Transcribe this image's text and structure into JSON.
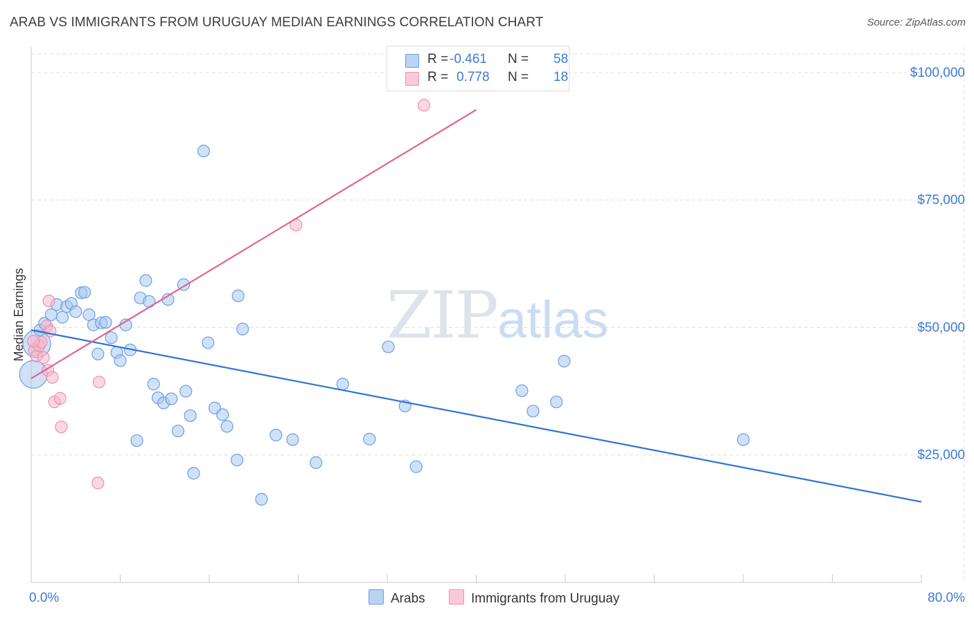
{
  "title": "ARAB VS IMMIGRANTS FROM URUGUAY MEDIAN EARNINGS CORRELATION CHART",
  "source": "Source: ZipAtlas.com",
  "watermark": {
    "zip": "ZIP",
    "atlas": "atlas"
  },
  "legend": {
    "r_label": "R =",
    "n_label": "N =",
    "rows": [
      {
        "r": "-0.461",
        "n": "58"
      },
      {
        "r": "0.778",
        "n": "18"
      }
    ]
  },
  "bottom_legend": {
    "arabs": "Arabs",
    "uruguay": "Immigrants from Uruguay"
  },
  "colors": {
    "arabs_fill": "#a9c8f0",
    "arabs_stroke": "#6a9fe0",
    "arabs_line": "#2f72d4",
    "uruguay_fill": "#f7b7cb",
    "uruguay_stroke": "#ee8fae",
    "uruguay_line": "#e0638f",
    "axis_text": "#3a7bd5",
    "grid": "#dddddd"
  },
  "chart_data": {
    "type": "scatter",
    "title": "ARAB VS IMMIGRANTS FROM URUGUAY MEDIAN EARNINGS CORRELATION CHART",
    "xlabel": "",
    "ylabel": "Median Earnings",
    "xlim": [
      0,
      80
    ],
    "ylim": [
      0,
      105000
    ],
    "x_tick_labels": [
      "0.0%",
      "80.0%"
    ],
    "y_ticks": [
      25000,
      50000,
      75000,
      100000
    ],
    "y_tick_labels": [
      "$25,000",
      "$50,000",
      "$75,000",
      "$100,000"
    ],
    "grid": true,
    "legend_position": "top-center",
    "series": [
      {
        "name": "Arabs",
        "r": -0.461,
        "n": 58,
        "trend": {
          "x": [
            0,
            80
          ],
          "y": [
            49500,
            15800
          ]
        },
        "points": [
          {
            "x": 0.2,
            "y": 40800,
            "big": true
          },
          {
            "x": 0.5,
            "y": 46800,
            "big": true
          },
          {
            "x": 0.8,
            "y": 49500
          },
          {
            "x": 1.2,
            "y": 50800
          },
          {
            "x": 1.8,
            "y": 52500
          },
          {
            "x": 2.3,
            "y": 54500
          },
          {
            "x": 2.8,
            "y": 52000
          },
          {
            "x": 3.2,
            "y": 54100
          },
          {
            "x": 3.6,
            "y": 54700
          },
          {
            "x": 4.0,
            "y": 53100
          },
          {
            "x": 4.5,
            "y": 56800
          },
          {
            "x": 4.8,
            "y": 56900
          },
          {
            "x": 5.2,
            "y": 52500
          },
          {
            "x": 5.6,
            "y": 50500
          },
          {
            "x": 6.0,
            "y": 44800
          },
          {
            "x": 6.3,
            "y": 50900
          },
          {
            "x": 6.7,
            "y": 51000
          },
          {
            "x": 7.2,
            "y": 48000
          },
          {
            "x": 7.7,
            "y": 45100
          },
          {
            "x": 8.0,
            "y": 43500
          },
          {
            "x": 8.5,
            "y": 50500
          },
          {
            "x": 8.9,
            "y": 45600
          },
          {
            "x": 9.5,
            "y": 27800
          },
          {
            "x": 9.8,
            "y": 55800
          },
          {
            "x": 10.3,
            "y": 59200
          },
          {
            "x": 10.6,
            "y": 55100
          },
          {
            "x": 11.0,
            "y": 38900
          },
          {
            "x": 11.4,
            "y": 36200
          },
          {
            "x": 11.9,
            "y": 35200
          },
          {
            "x": 12.3,
            "y": 55500
          },
          {
            "x": 12.6,
            "y": 36000
          },
          {
            "x": 13.2,
            "y": 29700
          },
          {
            "x": 13.7,
            "y": 58400
          },
          {
            "x": 13.9,
            "y": 37500
          },
          {
            "x": 14.3,
            "y": 32700
          },
          {
            "x": 14.6,
            "y": 21400
          },
          {
            "x": 15.5,
            "y": 84600
          },
          {
            "x": 15.9,
            "y": 47000
          },
          {
            "x": 16.5,
            "y": 34200
          },
          {
            "x": 17.2,
            "y": 32900
          },
          {
            "x": 17.6,
            "y": 30600
          },
          {
            "x": 18.5,
            "y": 24000
          },
          {
            "x": 18.6,
            "y": 56200
          },
          {
            "x": 19.0,
            "y": 49700
          },
          {
            "x": 20.7,
            "y": 16300
          },
          {
            "x": 22.0,
            "y": 28900
          },
          {
            "x": 23.5,
            "y": 28000
          },
          {
            "x": 25.6,
            "y": 23500
          },
          {
            "x": 28.0,
            "y": 38900
          },
          {
            "x": 30.4,
            "y": 28100
          },
          {
            "x": 32.1,
            "y": 46200
          },
          {
            "x": 33.6,
            "y": 34600
          },
          {
            "x": 34.6,
            "y": 22700
          },
          {
            "x": 44.1,
            "y": 37600
          },
          {
            "x": 45.1,
            "y": 33600
          },
          {
            "x": 47.2,
            "y": 35400
          },
          {
            "x": 47.9,
            "y": 43400
          },
          {
            "x": 64.0,
            "y": 28000
          }
        ]
      },
      {
        "name": "Immigrants from Uruguay",
        "r": 0.778,
        "n": 18,
        "trend": {
          "x": [
            0,
            40
          ],
          "y": [
            40000,
            92700
          ]
        },
        "points": [
          {
            "x": 0.3,
            "y": 45600
          },
          {
            "x": 0.5,
            "y": 44400
          },
          {
            "x": 0.7,
            "y": 46400
          },
          {
            "x": 0.9,
            "y": 47100
          },
          {
            "x": 1.1,
            "y": 44100
          },
          {
            "x": 1.4,
            "y": 50300
          },
          {
            "x": 1.5,
            "y": 41600
          },
          {
            "x": 1.6,
            "y": 55200
          },
          {
            "x": 1.7,
            "y": 49300
          },
          {
            "x": 1.9,
            "y": 40200
          },
          {
            "x": 2.1,
            "y": 35400
          },
          {
            "x": 2.6,
            "y": 36100
          },
          {
            "x": 2.7,
            "y": 30500
          },
          {
            "x": 6.1,
            "y": 39300
          },
          {
            "x": 6.0,
            "y": 19500
          },
          {
            "x": 23.8,
            "y": 70100
          },
          {
            "x": 35.3,
            "y": 93600
          },
          {
            "x": 0.2,
            "y": 47300
          }
        ]
      }
    ]
  }
}
